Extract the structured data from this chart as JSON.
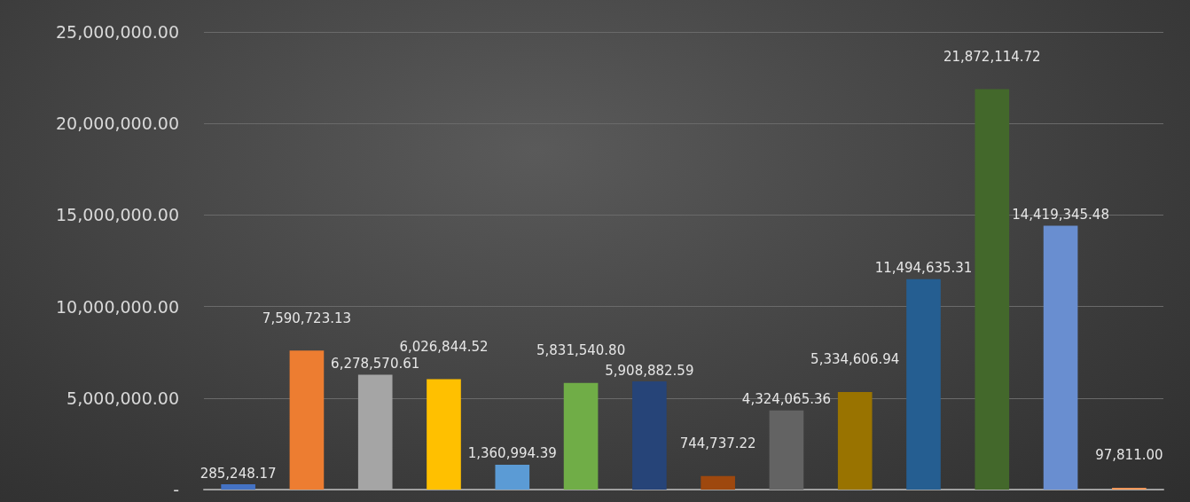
{
  "chart_data": {
    "type": "bar",
    "categories": [
      null,
      null,
      null,
      null,
      null,
      null,
      null,
      null,
      null,
      null,
      null,
      null,
      null,
      null
    ],
    "values": [
      285248.17,
      7590723.13,
      6278570.61,
      6026844.52,
      1360994.39,
      5831540.8,
      5908882.59,
      744737.22,
      4324065.36,
      5334606.94,
      11494635.31,
      21872114.72,
      14419345.48,
      97811.0
    ],
    "colors": [
      "#4472c4",
      "#ed7d31",
      "#a5a5a5",
      "#ffc000",
      "#5b9bd5",
      "#70ad47",
      "#264478",
      "#9e480e",
      "#636363",
      "#997300",
      "#255e91",
      "#43682b",
      "#698ed0",
      "#f1975a"
    ],
    "ylim": [
      0,
      25000000
    ],
    "yticks": [
      {
        "value": 0,
        "label": "-"
      },
      {
        "value": 5000000,
        "label": "5,000,000.00"
      },
      {
        "value": 10000000,
        "label": "10,000,000.00"
      },
      {
        "value": 15000000,
        "label": "15,000,000.00"
      },
      {
        "value": 20000000,
        "label": "20,000,000.00"
      },
      {
        "value": 25000000,
        "label": "25,000,000.00"
      }
    ],
    "value_labels": [
      "285,248.17",
      "7,590,723.13",
      "6,278,570.61",
      "6,026,844.52",
      "1,360,994.39",
      "5,831,540.80",
      "5,908,882.59",
      "744,737.22",
      "4,324,065.36",
      "5,334,606.94",
      "11,494,635.31",
      "21,872,114.72",
      "14,419,345.48",
      "97,811.00"
    ],
    "grid": "y"
  }
}
